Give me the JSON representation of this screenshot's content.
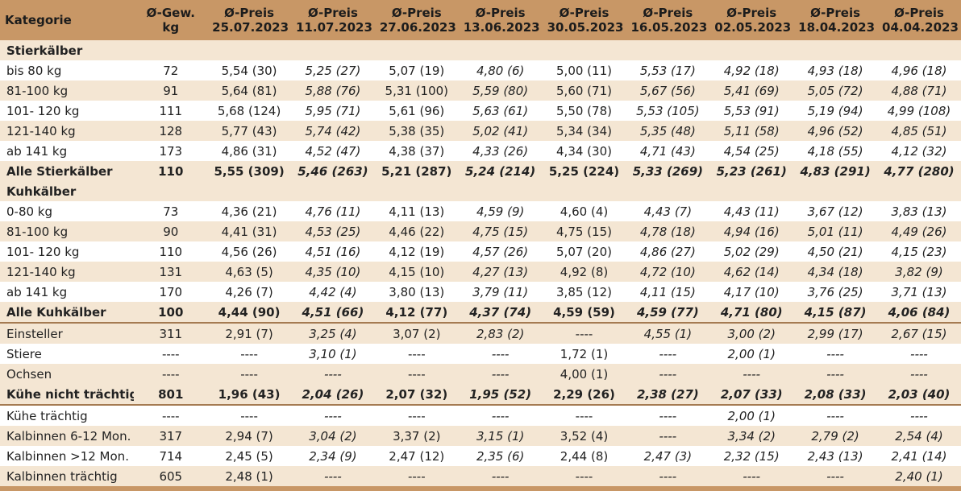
{
  "header": {
    "kategorie": "Kategorie",
    "gewicht": [
      "Ø-Gew.",
      "kg"
    ],
    "preise": [
      [
        "Ø-Preis",
        "25.07.2023"
      ],
      [
        "Ø-Preis",
        "11.07.2023"
      ],
      [
        "Ø-Preis",
        "27.06.2023"
      ],
      [
        "Ø-Preis",
        "13.06.2023"
      ],
      [
        "Ø-Preis",
        "30.05.2023"
      ],
      [
        "Ø-Preis",
        "16.05.2023"
      ],
      [
        "Ø-Preis",
        "02.05.2023"
      ],
      [
        "Ø-Preis",
        "18.04.2023"
      ],
      [
        "Ø-Preis",
        "04.04.2023"
      ]
    ]
  },
  "rows": [
    {
      "type": "section",
      "label": "Stierkälber"
    },
    {
      "type": "data",
      "label": "bis 80 kg",
      "kg": "72",
      "values": [
        "5,54 (30)",
        "5,25 (27)",
        "5,07 (19)",
        "4,80 (6)",
        "5,00 (11)",
        "5,53 (17)",
        "4,92 (18)",
        "4,93 (18)",
        "4,96 (18)"
      ]
    },
    {
      "type": "data",
      "label": "81-100 kg",
      "kg": "91",
      "values": [
        "5,64 (81)",
        "5,88 (76)",
        "5,31 (100)",
        "5,59 (80)",
        "5,60 (71)",
        "5,67 (56)",
        "5,41 (69)",
        "5,05 (72)",
        "4,88 (71)"
      ]
    },
    {
      "type": "data",
      "label": "101- 120 kg",
      "kg": "111",
      "values": [
        "5,68 (124)",
        "5,95 (71)",
        "5,61 (96)",
        "5,63 (61)",
        "5,50 (78)",
        "5,53 (105)",
        "5,53 (91)",
        "5,19 (94)",
        "4,99 (108)"
      ]
    },
    {
      "type": "data",
      "label": "121-140 kg",
      "kg": "128",
      "values": [
        "5,77 (43)",
        "5,74 (42)",
        "5,38 (35)",
        "5,02 (41)",
        "5,34 (34)",
        "5,35 (48)",
        "5,11 (58)",
        "4,96 (52)",
        "4,85 (51)"
      ]
    },
    {
      "type": "data",
      "label": "ab 141 kg",
      "kg": "173",
      "values": [
        "4,86 (31)",
        "4,52 (47)",
        "4,38 (37)",
        "4,33 (26)",
        "4,34 (30)",
        "4,71 (43)",
        "4,54 (25)",
        "4,18 (55)",
        "4,12 (32)"
      ]
    },
    {
      "type": "total",
      "label": "Alle Stierkälber",
      "kg": "110",
      "values": [
        "5,55 (309)",
        "5,46 (263)",
        "5,21 (287)",
        "5,24 (214)",
        "5,25 (224)",
        "5,33 (269)",
        "5,23 (261)",
        "4,83 (291)",
        "4,77 (280)"
      ]
    },
    {
      "type": "section",
      "label": "Kuhkälber"
    },
    {
      "type": "data",
      "label": "0-80 kg",
      "kg": "73",
      "values": [
        "4,36 (21)",
        "4,76 (11)",
        "4,11 (13)",
        "4,59 (9)",
        "4,60 (4)",
        "4,43 (7)",
        "4,43 (11)",
        "3,67 (12)",
        "3,83 (13)"
      ]
    },
    {
      "type": "data",
      "label": "81-100 kg",
      "kg": "90",
      "values": [
        "4,41 (31)",
        "4,53 (25)",
        "4,46 (22)",
        "4,75 (15)",
        "4,75 (15)",
        "4,78 (18)",
        "4,94 (16)",
        "5,01 (11)",
        "4,49 (26)"
      ]
    },
    {
      "type": "data",
      "label": "101- 120 kg",
      "kg": "110",
      "values": [
        "4,56 (26)",
        "4,51 (16)",
        "4,12 (19)",
        "4,57 (26)",
        "5,07 (20)",
        "4,86 (27)",
        "5,02 (29)",
        "4,50 (21)",
        "4,15 (23)"
      ]
    },
    {
      "type": "data",
      "label": "121-140 kg",
      "kg": "131",
      "values": [
        "4,63 (5)",
        "4,35 (10)",
        "4,15 (10)",
        "4,27 (13)",
        "4,92 (8)",
        "4,72 (10)",
        "4,62 (14)",
        "4,34 (18)",
        "3,82 (9)"
      ]
    },
    {
      "type": "data",
      "label": "ab 141 kg",
      "kg": "170",
      "values": [
        "4,26 (7)",
        "4,42 (4)",
        "3,80 (13)",
        "3,79 (11)",
        "3,85 (12)",
        "4,11 (15)",
        "4,17 (10)",
        "3,76 (25)",
        "3,71 (13)"
      ]
    },
    {
      "type": "total",
      "label": "Alle Kuhkälber",
      "kg": "100",
      "values": [
        "4,44 (90)",
        "4,51 (66)",
        "4,12 (77)",
        "4,37 (74)",
        "4,59 (59)",
        "4,59 (77)",
        "4,71 (80)",
        "4,15 (87)",
        "4,06 (84)"
      ]
    },
    {
      "type": "data",
      "label": "Einsteller",
      "kg": "311",
      "values": [
        "2,91 (7)",
        "3,25 (4)",
        "3,07 (2)",
        "2,83 (2)",
        "----",
        "4,55 (1)",
        "3,00 (2)",
        "2,99 (17)",
        "2,67 (15)"
      ]
    },
    {
      "type": "data",
      "label": "Stiere",
      "kg": "----",
      "values": [
        "----",
        "3,10 (1)",
        "----",
        "----",
        "1,72 (1)",
        "----",
        "2,00 (1)",
        "----",
        "----"
      ]
    },
    {
      "type": "data",
      "label": "Ochsen",
      "kg": "----",
      "values": [
        "----",
        "----",
        "----",
        "----",
        "4,00 (1)",
        "----",
        "----",
        "----",
        "----"
      ]
    },
    {
      "type": "total",
      "label": "Kühe nicht trächtig",
      "kg": "801",
      "values": [
        "1,96 (43)",
        "2,04 (26)",
        "2,07 (32)",
        "1,95 (52)",
        "2,29 (26)",
        "2,38 (27)",
        "2,07 (33)",
        "2,08 (33)",
        "2,03 (40)"
      ]
    },
    {
      "type": "data",
      "label": "Kühe trächtig",
      "kg": "----",
      "values": [
        "----",
        "----",
        "----",
        "----",
        "----",
        "----",
        "2,00 (1)",
        "----",
        "----"
      ]
    },
    {
      "type": "data",
      "label": "Kalbinnen 6-12 Mon.",
      "kg": "317",
      "values": [
        "2,94 (7)",
        "3,04 (2)",
        "3,37 (2)",
        "3,15 (1)",
        "3,52 (4)",
        "----",
        "3,34 (2)",
        "2,79 (2)",
        "2,54 (4)"
      ]
    },
    {
      "type": "data",
      "label": "Kalbinnen >12 Mon.",
      "kg": "714",
      "values": [
        "2,45 (5)",
        "2,34 (9)",
        "2,47 (12)",
        "2,35 (6)",
        "2,44 (8)",
        "2,47 (3)",
        "2,32 (15)",
        "2,43 (13)",
        "2,41 (14)"
      ]
    },
    {
      "type": "data",
      "label": "Kalbinnen trächtig",
      "kg": "605",
      "values": [
        "2,48 (1)",
        "----",
        "----",
        "----",
        "----",
        "----",
        "----",
        "----",
        "2,40 (1)"
      ]
    }
  ],
  "italic_columns": [
    1,
    3,
    5,
    6,
    7,
    8
  ],
  "colors": {
    "header": "#c89766",
    "band": "#f4e6d3",
    "rule": "#a57b52"
  }
}
